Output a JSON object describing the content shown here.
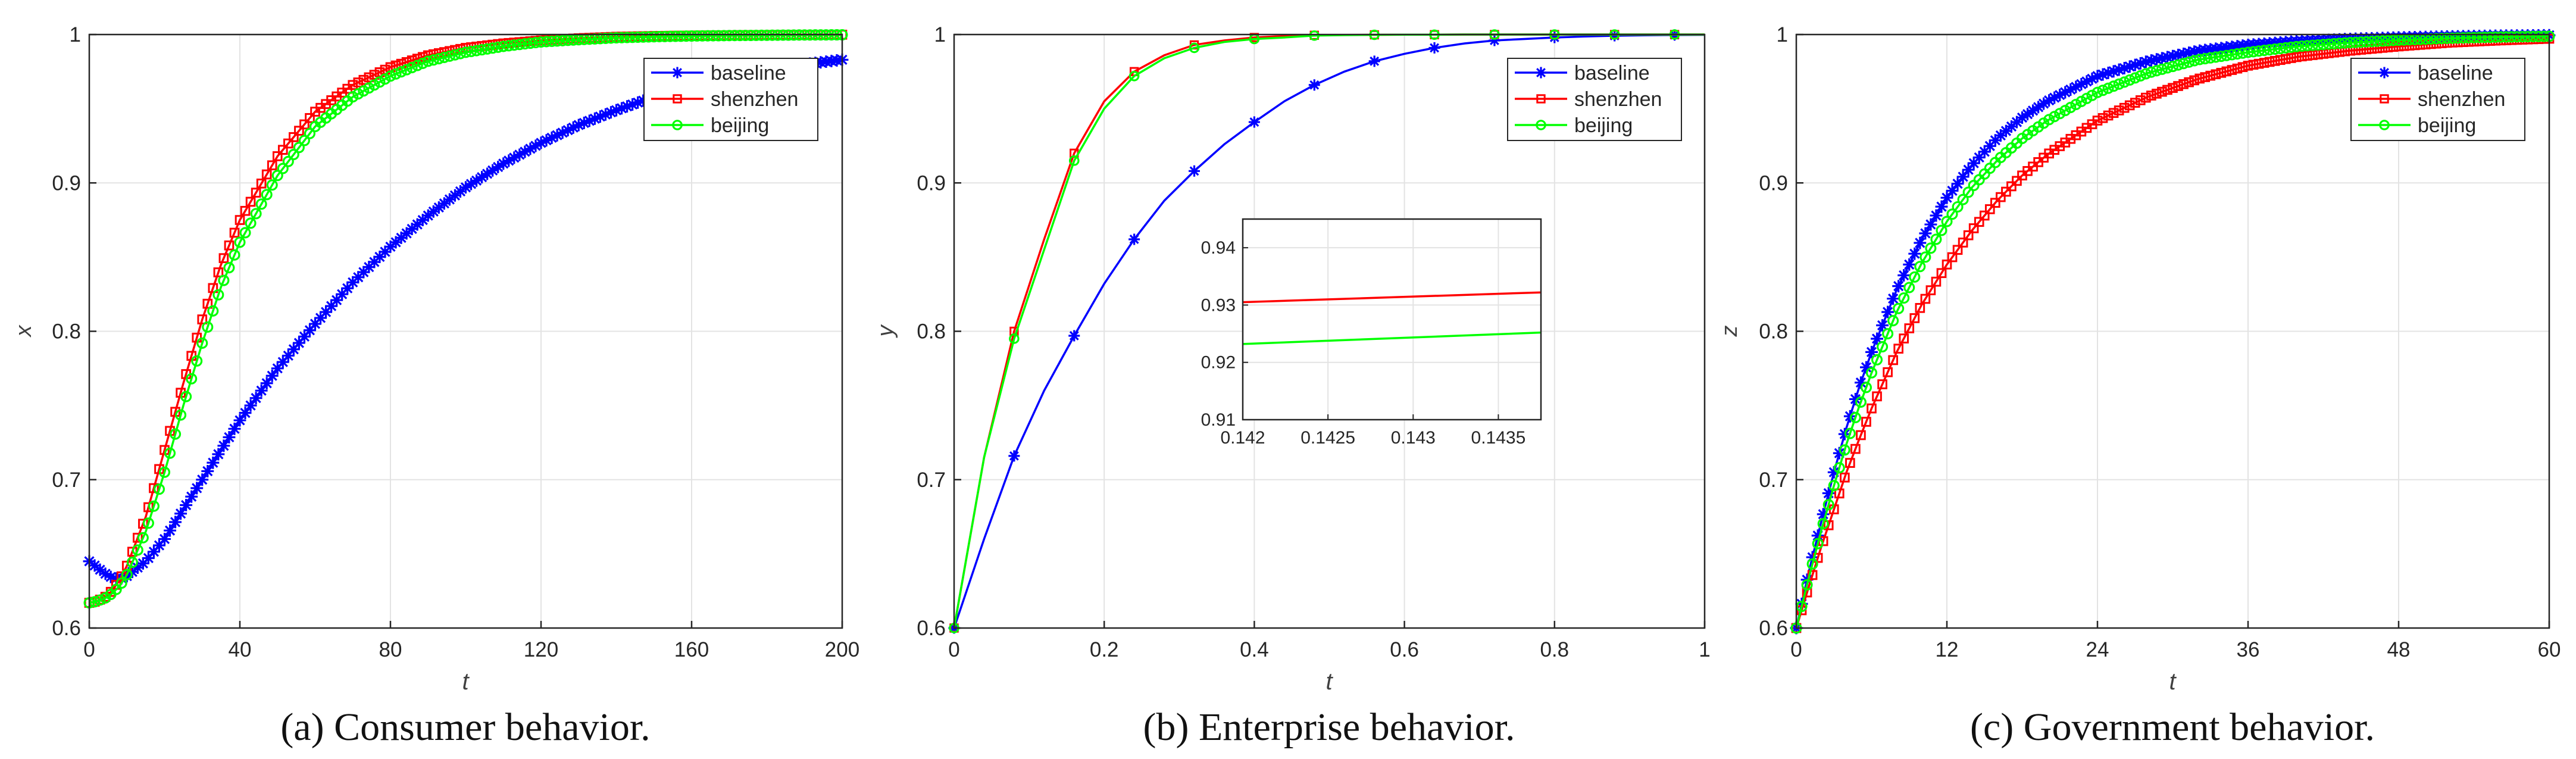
{
  "colors": {
    "baseline": "#0000ff",
    "shenzhen": "#ff0000",
    "beijing": "#00ff00",
    "grid": "#e3e3e3",
    "axis": "#262626"
  },
  "chart_data": [
    {
      "id": "a",
      "type": "line",
      "caption": "(a) Consumer behavior.",
      "xlabel": "t",
      "ylabel": "x",
      "xlim": [
        0,
        200
      ],
      "ylim": [
        0.6,
        1
      ],
      "xticks": [
        0,
        40,
        80,
        120,
        160,
        200
      ],
      "xtick_labels": [
        "0",
        "40",
        "80",
        "120",
        "160",
        "200"
      ],
      "yticks": [
        0.6,
        0.7,
        0.8,
        0.9,
        1
      ],
      "ytick_labels": [
        "0.6",
        "0.7",
        "0.8",
        "0.9",
        "1"
      ],
      "grid": true,
      "legend_position": "top-right",
      "marker_every": 1,
      "series": [
        {
          "name": "baseline",
          "label": "baseline",
          "marker": "star",
          "color_key": "baseline",
          "x": [
            0,
            1,
            2,
            4,
            6,
            8,
            10,
            15,
            20,
            30,
            40,
            50,
            60,
            70,
            80,
            90,
            100,
            110,
            120,
            130,
            140,
            150,
            160,
            170,
            180,
            190,
            200
          ],
          "y": [
            0.645,
            0.643,
            0.641,
            0.637,
            0.634,
            0.633,
            0.635,
            0.645,
            0.66,
            0.7,
            0.74,
            0.775,
            0.805,
            0.833,
            0.857,
            0.878,
            0.897,
            0.913,
            0.927,
            0.939,
            0.949,
            0.958,
            0.965,
            0.971,
            0.976,
            0.98,
            0.983
          ]
        },
        {
          "name": "shenzhen",
          "label": "shenzhen",
          "marker": "square",
          "color_key": "shenzhen",
          "x": [
            0,
            2,
            5,
            8,
            10,
            15,
            20,
            25,
            30,
            35,
            40,
            50,
            60,
            70,
            80,
            90,
            100,
            110,
            120,
            130,
            140,
            150,
            160,
            170,
            180,
            190,
            200
          ],
          "y": [
            0.617,
            0.618,
            0.622,
            0.632,
            0.642,
            0.675,
            0.72,
            0.765,
            0.808,
            0.845,
            0.875,
            0.918,
            0.948,
            0.966,
            0.978,
            0.986,
            0.991,
            0.994,
            0.996,
            0.9975,
            0.9985,
            0.999,
            0.9993,
            0.9995,
            0.9997,
            0.9998,
            0.9999
          ]
        },
        {
          "name": "beijing",
          "label": "beijing",
          "marker": "circle",
          "color_key": "beijing",
          "x": [
            0,
            2,
            5,
            8,
            10,
            15,
            20,
            25,
            30,
            35,
            40,
            50,
            60,
            70,
            80,
            90,
            100,
            110,
            120,
            130,
            140,
            150,
            160,
            170,
            180,
            190,
            200
          ],
          "y": [
            0.617,
            0.618,
            0.621,
            0.628,
            0.636,
            0.665,
            0.705,
            0.75,
            0.792,
            0.83,
            0.86,
            0.905,
            0.938,
            0.958,
            0.972,
            0.982,
            0.988,
            0.992,
            0.995,
            0.9965,
            0.9978,
            0.9985,
            0.999,
            0.9993,
            0.9995,
            0.9997,
            0.9998
          ]
        }
      ]
    },
    {
      "id": "b",
      "type": "line",
      "caption": "(b) Enterprise behavior.",
      "xlabel": "t",
      "ylabel": "y",
      "xlim": [
        0,
        1
      ],
      "ylim": [
        0.6,
        1
      ],
      "xticks": [
        0,
        0.2,
        0.4,
        0.6,
        0.8,
        1
      ],
      "xtick_labels": [
        "0",
        "0.2",
        "0.4",
        "0.6",
        "0.8",
        "1"
      ],
      "yticks": [
        0.6,
        0.7,
        0.8,
        0.9,
        1
      ],
      "ytick_labels": [
        "0.6",
        "0.7",
        "0.8",
        "0.9",
        "1"
      ],
      "grid": true,
      "legend_position": "top-right",
      "marker_every": 2,
      "series": [
        {
          "name": "baseline",
          "label": "baseline",
          "marker": "star",
          "color_key": "baseline",
          "x": [
            0,
            0.04,
            0.08,
            0.12,
            0.16,
            0.2,
            0.24,
            0.28,
            0.32,
            0.36,
            0.4,
            0.44,
            0.48,
            0.52,
            0.56,
            0.6,
            0.64,
            0.68,
            0.72,
            0.76,
            0.8,
            0.84,
            0.88,
            0.92,
            0.96,
            1
          ],
          "y": [
            0.6,
            0.66,
            0.716,
            0.76,
            0.797,
            0.832,
            0.862,
            0.888,
            0.908,
            0.926,
            0.941,
            0.955,
            0.966,
            0.975,
            0.982,
            0.987,
            0.991,
            0.994,
            0.996,
            0.997,
            0.998,
            0.9987,
            0.9992,
            0.9995,
            0.9997,
            0.9998
          ]
        },
        {
          "name": "shenzhen",
          "label": "shenzhen",
          "marker": "square",
          "color_key": "shenzhen",
          "x": [
            0,
            0.04,
            0.08,
            0.12,
            0.16,
            0.2,
            0.24,
            0.28,
            0.32,
            0.36,
            0.4,
            0.44,
            0.48,
            0.52,
            0.56,
            0.6,
            0.64,
            0.68,
            0.72,
            0.76,
            0.8,
            0.84,
            0.88,
            0.92,
            0.96,
            1
          ],
          "y": [
            0.6,
            0.715,
            0.8,
            0.862,
            0.92,
            0.955,
            0.975,
            0.986,
            0.993,
            0.996,
            0.998,
            0.999,
            0.9995,
            0.9997,
            0.9998,
            0.9999,
            0.9999,
            1,
            1,
            1,
            1,
            1,
            1,
            1,
            1,
            1
          ]
        },
        {
          "name": "beijing",
          "label": "beijing",
          "marker": "circle",
          "color_key": "beijing",
          "x": [
            0,
            0.04,
            0.08,
            0.12,
            0.16,
            0.2,
            0.24,
            0.28,
            0.32,
            0.36,
            0.4,
            0.44,
            0.48,
            0.52,
            0.56,
            0.6,
            0.64,
            0.68,
            0.72,
            0.76,
            0.8,
            0.84,
            0.88,
            0.92,
            0.96,
            1
          ],
          "y": [
            0.6,
            0.715,
            0.795,
            0.855,
            0.915,
            0.95,
            0.972,
            0.984,
            0.991,
            0.995,
            0.997,
            0.998,
            0.9993,
            0.9996,
            0.9998,
            0.9999,
            0.9999,
            1,
            1,
            1,
            1,
            1,
            1,
            1,
            1,
            1
          ]
        }
      ],
      "inset": {
        "xlim": [
          0.142,
          0.14375
        ],
        "ylim": [
          0.91,
          0.945
        ],
        "xticks": [
          0.142,
          0.1425,
          0.143,
          0.1435
        ],
        "xtick_labels": [
          "0.142",
          "0.1425",
          "0.143",
          "0.1435"
        ],
        "yticks": [
          0.91,
          0.92,
          0.93,
          0.94
        ],
        "ytick_labels": [
          "0.91",
          "0.92",
          "0.93",
          "0.94"
        ],
        "grid": true,
        "series": [
          {
            "name": "shenzhen",
            "color_key": "shenzhen",
            "x": [
              0.142,
              0.14375
            ],
            "y": [
              0.9305,
              0.9322
            ]
          },
          {
            "name": "beijing",
            "color_key": "beijing",
            "x": [
              0.142,
              0.14375
            ],
            "y": [
              0.9232,
              0.9252
            ]
          }
        ]
      }
    },
    {
      "id": "c",
      "type": "line",
      "caption": "(c) Government behavior.",
      "xlabel": "t",
      "ylabel": "z",
      "xlim": [
        0,
        60
      ],
      "ylim": [
        0.6,
        1
      ],
      "xticks": [
        0,
        12,
        24,
        36,
        48,
        60
      ],
      "xtick_labels": [
        "0",
        "12",
        "24",
        "36",
        "48",
        "60"
      ],
      "yticks": [
        0.6,
        0.7,
        0.8,
        0.9,
        1
      ],
      "ytick_labels": [
        "0.6",
        "0.7",
        "0.8",
        "0.9",
        "1"
      ],
      "grid": true,
      "legend_position": "top-right",
      "marker_every": 1,
      "series": [
        {
          "name": "baseline",
          "label": "baseline",
          "marker": "star",
          "color_key": "baseline",
          "x": [
            0,
            1,
            2,
            3,
            4,
            5,
            6,
            8,
            10,
            12,
            14,
            16,
            18,
            20,
            24,
            28,
            32,
            36,
            40,
            44,
            48,
            52,
            56,
            60
          ],
          "y": [
            0.6,
            0.638,
            0.672,
            0.705,
            0.735,
            0.762,
            0.786,
            0.828,
            0.862,
            0.89,
            0.912,
            0.93,
            0.944,
            0.955,
            0.972,
            0.982,
            0.989,
            0.993,
            0.9955,
            0.997,
            0.998,
            0.9987,
            0.9992,
            0.9995
          ]
        },
        {
          "name": "shenzhen",
          "label": "shenzhen",
          "marker": "square",
          "color_key": "shenzhen",
          "x": [
            0,
            1,
            2,
            3,
            4,
            5,
            6,
            8,
            10,
            12,
            14,
            16,
            18,
            20,
            24,
            28,
            32,
            36,
            40,
            44,
            48,
            52,
            56,
            60
          ],
          "y": [
            0.6,
            0.628,
            0.655,
            0.68,
            0.705,
            0.727,
            0.748,
            0.786,
            0.818,
            0.845,
            0.868,
            0.888,
            0.905,
            0.919,
            0.942,
            0.958,
            0.97,
            0.979,
            0.985,
            0.989,
            0.992,
            0.9945,
            0.996,
            0.9972
          ]
        },
        {
          "name": "beijing",
          "label": "beijing",
          "marker": "circle",
          "color_key": "beijing",
          "x": [
            0,
            1,
            2,
            3,
            4,
            5,
            6,
            8,
            10,
            12,
            14,
            16,
            18,
            20,
            24,
            28,
            32,
            36,
            40,
            44,
            48,
            52,
            56,
            60
          ],
          "y": [
            0.6,
            0.634,
            0.666,
            0.696,
            0.724,
            0.749,
            0.772,
            0.813,
            0.846,
            0.874,
            0.897,
            0.915,
            0.93,
            0.942,
            0.961,
            0.974,
            0.983,
            0.988,
            0.992,
            0.9945,
            0.9962,
            0.9975,
            0.9983,
            0.9988
          ]
        }
      ]
    }
  ]
}
